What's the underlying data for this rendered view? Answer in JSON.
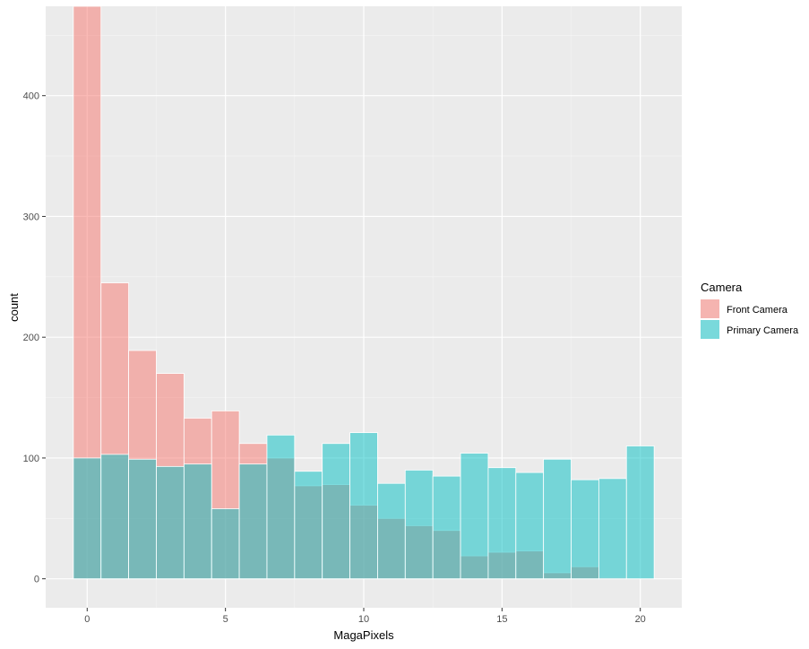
{
  "chart_data": {
    "type": "bar",
    "subtype": "overlaid-histogram",
    "title": "",
    "xlabel": "MagaPixels",
    "ylabel": "count",
    "xlim": [
      -1.5,
      21.5
    ],
    "ylim": [
      -24,
      474
    ],
    "x_ticks": [
      0,
      5,
      10,
      15,
      20
    ],
    "y_ticks": [
      0,
      100,
      200,
      300,
      400
    ],
    "grid": true,
    "legend": {
      "title": "Camera",
      "position": "right"
    },
    "bins": [
      0,
      1,
      2,
      3,
      4,
      5,
      6,
      7,
      8,
      9,
      10,
      11,
      12,
      13,
      14,
      15,
      16,
      17,
      18,
      19,
      20
    ],
    "series": [
      {
        "name": "Front Camera",
        "color": "#F8766D",
        "values": [
          474,
          245,
          189,
          170,
          133,
          139,
          112,
          100,
          77,
          78,
          61,
          50,
          44,
          40,
          19,
          22,
          23,
          5,
          10,
          1,
          0
        ]
      },
      {
        "name": "Primary Camera",
        "color": "#00BFC4",
        "values": [
          100,
          103,
          99,
          93,
          95,
          58,
          95,
          119,
          89,
          112,
          121,
          79,
          90,
          85,
          104,
          92,
          88,
          99,
          82,
          83,
          110
        ]
      }
    ]
  }
}
